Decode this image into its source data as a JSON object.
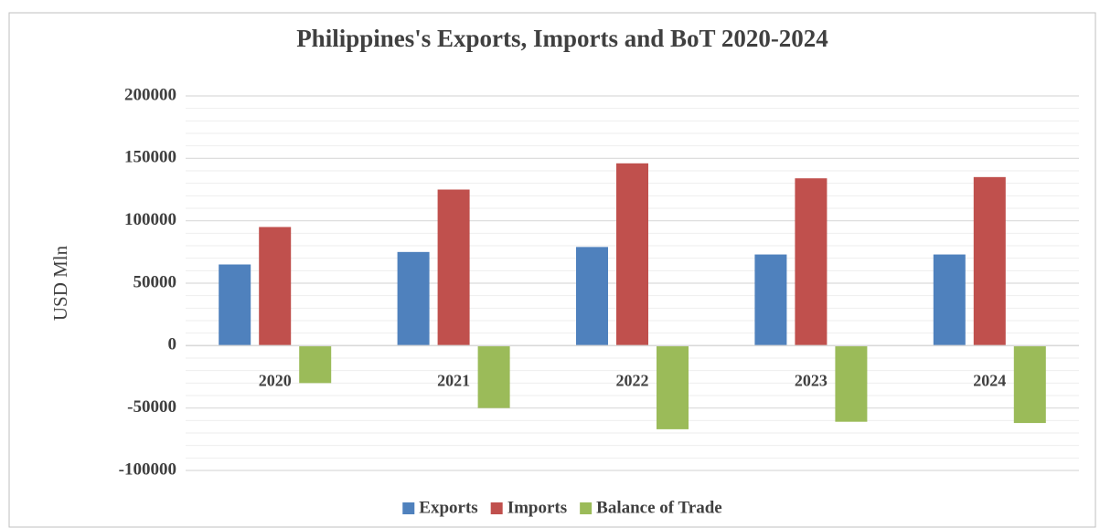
{
  "chart_data": {
    "type": "bar",
    "title": "Philippines's Exports, Imports and BoT  2020-2024",
    "y_label": "USD Mln",
    "categories": [
      "2020",
      "2021",
      "2022",
      "2023",
      "2024"
    ],
    "series": [
      {
        "name": "Exports",
        "color": "#4f81bd",
        "values": [
          65000,
          75000,
          79000,
          73000,
          73000
        ]
      },
      {
        "name": "Imports",
        "color": "#c0504d",
        "values": [
          95000,
          125000,
          146000,
          134000,
          135000
        ]
      },
      {
        "name": "Balance of Trade",
        "color": "#9bbb59",
        "values": [
          -30000,
          -50000,
          -67000,
          -61000,
          -62000
        ]
      }
    ],
    "ylim": [
      -100000,
      200000
    ],
    "yticks": [
      -100000,
      -50000,
      0,
      50000,
      100000,
      150000,
      200000
    ],
    "grid": true,
    "legend": "bottom"
  }
}
